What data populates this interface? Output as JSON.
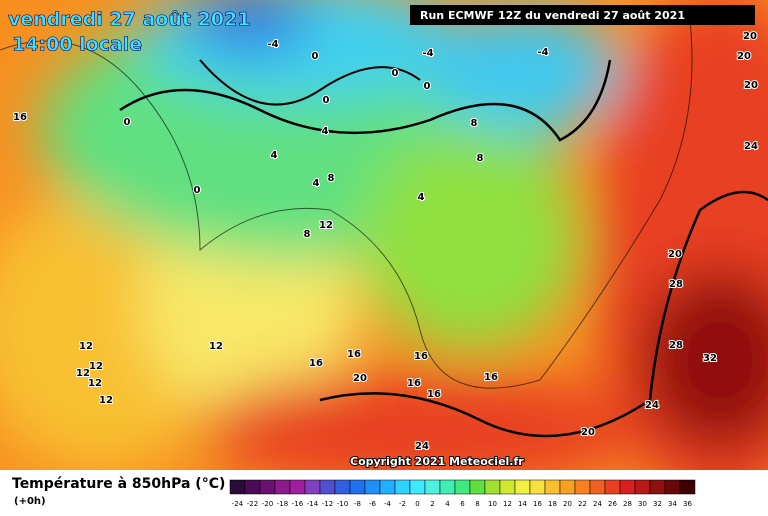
{
  "header": {
    "date": "vendredi 27 août 2021",
    "time": "14:00 locale",
    "run": "Run ECMWF 12Z du vendredi 27 août 2021"
  },
  "map": {
    "contour_labels": [
      -4,
      -4,
      -4,
      0,
      0,
      0,
      0,
      0,
      0,
      4,
      4,
      4,
      4,
      8,
      8,
      8,
      8,
      12,
      12,
      12,
      12,
      12,
      12,
      12,
      16,
      16,
      16,
      16,
      16,
      16,
      16,
      20,
      20,
      20,
      20,
      20,
      20,
      24,
      24,
      24,
      28,
      28,
      32
    ]
  },
  "footer": {
    "title": "Température à 850hPa (°C)",
    "step": "(+0h)",
    "copyright": "Copyright 2021 Meteociel.fr"
  },
  "legend": {
    "labels": [
      -24,
      -22,
      -20,
      -18,
      -16,
      -14,
      -12,
      -10,
      -8,
      -6,
      -4,
      -2,
      0,
      2,
      4,
      6,
      8,
      10,
      12,
      14,
      16,
      18,
      20,
      22,
      24,
      26,
      28,
      30,
      32,
      34,
      36
    ],
    "colors": [
      "#2a0a3a",
      "#4b0c55",
      "#6a1070",
      "#8b1a8a",
      "#a01fa0",
      "#8040c0",
      "#5050d0",
      "#3060e0",
      "#2070f0",
      "#2090f8",
      "#20b0ff",
      "#30d0ff",
      "#40e8ff",
      "#50f0e0",
      "#40f0b0",
      "#40e880",
      "#60e040",
      "#a0e030",
      "#d0e830",
      "#f0f040",
      "#f8e040",
      "#f8c030",
      "#f8a020",
      "#f88020",
      "#f06020",
      "#e84020",
      "#d82020",
      "#b81818",
      "#901010",
      "#680808",
      "#400000"
    ]
  }
}
